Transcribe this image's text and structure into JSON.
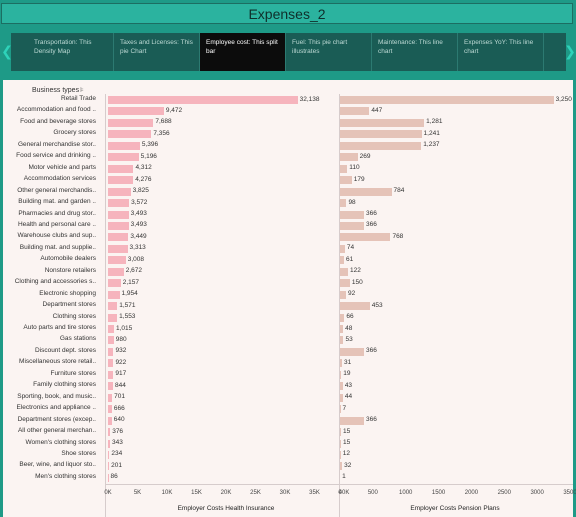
{
  "title": "Expenses_2",
  "nav": {
    "items": [
      {
        "label": "Transportation: This Density Map",
        "active": false
      },
      {
        "label": "Taxes and Licenses: This pie Chart",
        "active": false
      },
      {
        "label": "Employee cost: This split bar",
        "active": true
      },
      {
        "label": "Fuel: This pie chart illustrates",
        "active": false
      },
      {
        "label": "Maintenance: This line chart",
        "active": false
      },
      {
        "label": "Expenses YoY: This line chart",
        "active": false
      }
    ]
  },
  "column_header": "Business types",
  "icons": {
    "filter": "filter-icon",
    "prev": "chevron-left-icon",
    "next": "chevron-right-icon"
  },
  "colors": {
    "bar_health": "#f6b4bd",
    "bar_pension": "#e5c3b8",
    "teal": "#1e9a87"
  },
  "chart_data": {
    "type": "bar",
    "categories": [
      "Retail Trade",
      "Accommodation and food ..",
      "Food and beverage stores",
      "Grocery stores",
      "General merchandise stor..",
      "Food service and drinking ..",
      "Motor vehicle and parts",
      "Accommodation services",
      "Other general merchandis..",
      "Building mat. and garden ..",
      "Pharmacies and drug stor..",
      "Health and personal care ..",
      "Warehouse clubs and sup..",
      "Building mat. and supplie..",
      "Automobile dealers",
      "Nonstore retailers",
      "Clothing and accessories s..",
      "Electronic shopping",
      "Department stores",
      "Clothing stores",
      "Auto parts and tire stores",
      "Gas stations",
      "Discount dept. stores",
      "Miscellaneous store retail..",
      "Furniture stores",
      "Family clothing stores",
      "Sporting, book, and music..",
      "Electronics and appliance ..",
      "Department stores (excep..",
      "All other general merchan..",
      "Women's clothing stores",
      "Shoe stores",
      "Beer, wine, and liquor sto..",
      "Men's clothing stores"
    ],
    "series": [
      {
        "name": "Employer Costs Health Insurance",
        "values": [
          32138,
          9472,
          7688,
          7356,
          5396,
          5196,
          4312,
          4276,
          3825,
          3572,
          3493,
          3493,
          3449,
          3313,
          3008,
          2672,
          2157,
          1954,
          1571,
          1553,
          1015,
          980,
          932,
          922,
          917,
          844,
          701,
          666,
          640,
          376,
          343,
          234,
          201,
          86
        ],
        "labels": [
          "32,138",
          "9,472",
          "7,688",
          "7,356",
          "5,396",
          "5,196",
          "4,312",
          "4,276",
          "3,825",
          "3,572",
          "3,493",
          "3,493",
          "3,449",
          "3,313",
          "3,008",
          "2,672",
          "2,157",
          "1,954",
          "1,571",
          "1,553",
          "1,015",
          "980",
          "932",
          "922",
          "917",
          "844",
          "701",
          "666",
          "640",
          "376",
          "343",
          "234",
          "201",
          "86"
        ]
      },
      {
        "name": "Employer Costs Pension Plans",
        "values": [
          3250,
          447,
          1281,
          1241,
          1237,
          269,
          110,
          179,
          784,
          98,
          366,
          366,
          768,
          74,
          61,
          122,
          150,
          92,
          453,
          66,
          48,
          53,
          366,
          31,
          19,
          43,
          44,
          7,
          366,
          15,
          15,
          12,
          32,
          1
        ],
        "labels": [
          "3,250",
          "447",
          "1,281",
          "1,241",
          "1,237",
          "269",
          "110",
          "179",
          "784",
          "98",
          "366",
          "366",
          "768",
          "74",
          "61",
          "122",
          "150",
          "92",
          "453",
          "66",
          "48",
          "53",
          "366",
          "31",
          "19",
          "43",
          "44",
          "7",
          "366",
          "15",
          "15",
          "12",
          "32",
          "1"
        ]
      }
    ],
    "x_axes": [
      {
        "label": "Employer Costs Health Insurance",
        "range": [
          0,
          40000
        ],
        "ticks": [
          "0K",
          "5K",
          "10K",
          "15K",
          "20K",
          "25K",
          "30K",
          "35K",
          "40K"
        ]
      },
      {
        "label": "Employer Costs Pension Plans",
        "range": [
          0,
          3500
        ],
        "ticks": [
          "0",
          "500",
          "1000",
          "1500",
          "2000",
          "2500",
          "3000",
          "3500"
        ]
      }
    ]
  }
}
